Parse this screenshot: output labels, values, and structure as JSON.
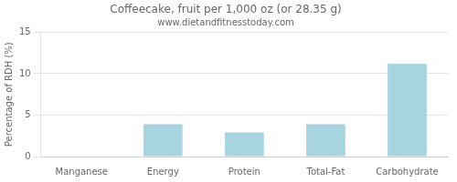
{
  "chart_data": {
    "type": "bar",
    "title": "Coffeecake, fruit per 1,000 oz (or 28.35 g)",
    "subtitle": "www.dietandfitnesstoday.com",
    "categories": [
      "Manganese",
      "Energy",
      "Protein",
      "Total-Fat",
      "Carbohydrate"
    ],
    "values": [
      0.05,
      3.9,
      2.9,
      3.9,
      11.2
    ],
    "color": "#a8d4e0",
    "ylabel": "Percentage of RDH (%)",
    "ylim": [
      0,
      15
    ],
    "yticks": [
      0,
      5,
      10,
      15
    ],
    "grid": true
  }
}
